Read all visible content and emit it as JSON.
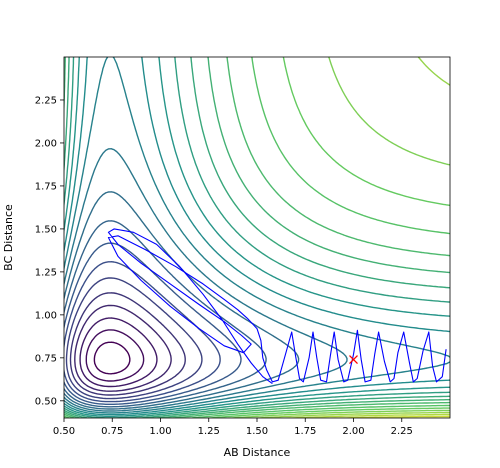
{
  "chart_data": {
    "type": "line",
    "subtype": "contour plot with overlaid trajectory",
    "title": "",
    "xlabel": "AB Distance",
    "ylabel": "BC Distance",
    "xlim": [
      0.5,
      2.5
    ],
    "ylim": [
      0.4,
      2.5
    ],
    "xticks": [
      "0.50",
      "0.75",
      "1.00",
      "1.25",
      "1.50",
      "1.75",
      "2.00",
      "2.25"
    ],
    "yticks": [
      "0.50",
      "0.75",
      "1.00",
      "1.25",
      "1.50",
      "1.75",
      "2.00",
      "2.25"
    ],
    "grid": false,
    "legend": "none",
    "colormap": [
      "#440154",
      "#3b528b",
      "#21918c",
      "#5ec962",
      "#fde725"
    ],
    "contours": {
      "potential": "Morse-type V = D(1-e^{-a(x-r0)})^2 + D(1-e^{-a(y-r0)})^2",
      "D": 1.0,
      "a": 2.2,
      "r0": 0.74,
      "levels": [
        0.04,
        0.1,
        0.17,
        0.25,
        0.33,
        0.42,
        0.51,
        0.6,
        0.69,
        0.78,
        0.87,
        0.96,
        1.05,
        1.14,
        1.23,
        1.32,
        1.41,
        1.5,
        1.6,
        1.7,
        1.8,
        1.9,
        2.0,
        2.1,
        2.2,
        2.3
      ]
    },
    "trajectory": {
      "color": "#0000ff",
      "x": [
        1.58,
        1.53,
        1.47,
        1.4,
        1.32,
        1.22,
        1.1,
        0.98,
        0.86,
        0.76,
        0.73,
        0.78,
        0.9,
        1.05,
        1.2,
        1.33,
        1.42,
        1.47,
        1.43,
        1.33,
        1.2,
        1.05,
        0.9,
        0.78,
        0.73,
        0.78,
        0.92,
        1.08,
        1.22,
        1.33,
        1.4,
        1.45,
        1.5,
        1.52,
        1.53,
        1.55,
        1.58,
        1.61,
        1.64,
        1.68,
        1.7,
        1.72,
        1.74,
        1.77,
        1.79,
        1.81,
        1.83,
        1.86,
        1.88,
        1.9,
        1.92,
        1.95,
        1.97,
        2.0,
        2.02,
        2.04,
        2.06,
        2.09,
        2.11,
        2.13,
        2.16,
        2.19,
        2.21,
        2.23,
        2.26,
        2.29,
        2.31,
        2.33,
        2.36,
        2.39,
        2.41,
        2.43,
        2.46,
        2.48
      ],
      "y": [
        0.6,
        0.64,
        0.72,
        0.83,
        0.97,
        1.12,
        1.28,
        1.41,
        1.48,
        1.5,
        1.48,
        1.41,
        1.3,
        1.18,
        1.06,
        0.96,
        0.88,
        0.83,
        0.78,
        0.82,
        0.92,
        1.05,
        1.2,
        1.34,
        1.45,
        1.46,
        1.38,
        1.28,
        1.18,
        1.09,
        1.03,
        0.98,
        0.92,
        0.85,
        0.75,
        0.68,
        0.61,
        0.62,
        0.74,
        0.9,
        0.76,
        0.63,
        0.61,
        0.75,
        0.9,
        0.75,
        0.62,
        0.61,
        0.76,
        0.9,
        0.74,
        0.61,
        0.62,
        0.77,
        0.91,
        0.74,
        0.61,
        0.62,
        0.77,
        0.9,
        0.73,
        0.61,
        0.63,
        0.78,
        0.9,
        0.72,
        0.61,
        0.63,
        0.79,
        0.9,
        0.7,
        0.61,
        0.64,
        0.8
      ]
    },
    "marker": {
      "symbol": "x",
      "color": "#ff0000",
      "x": 2.0,
      "y": 0.74
    }
  }
}
